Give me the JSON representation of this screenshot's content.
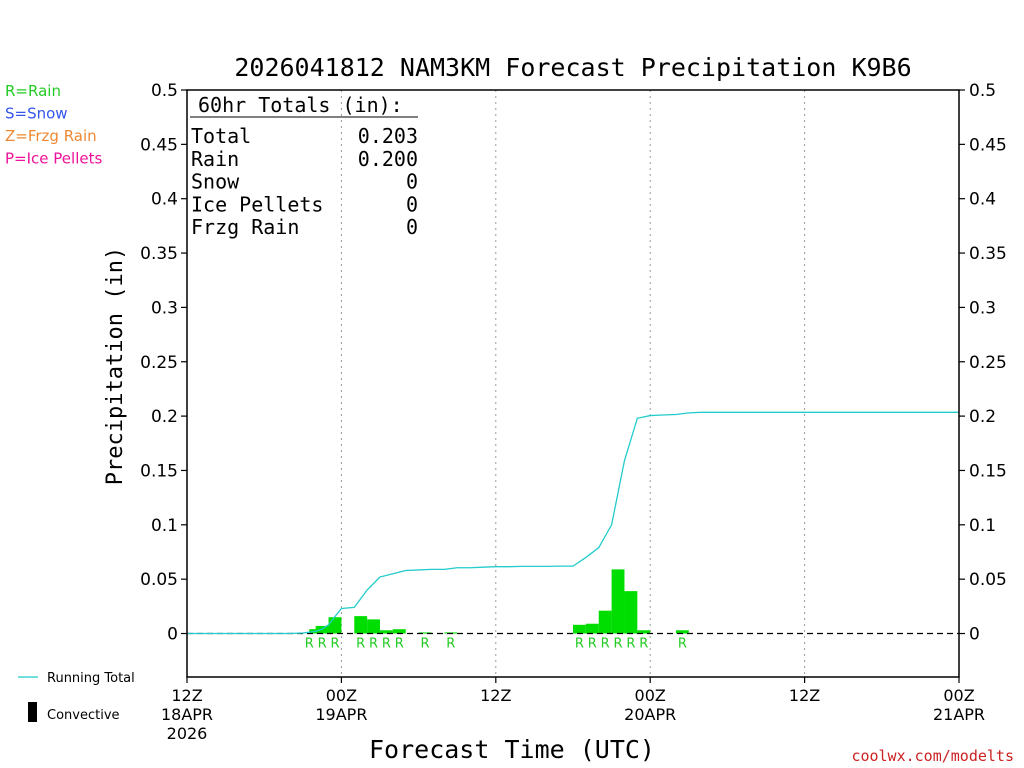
{
  "chart_data": {
    "type": "bar",
    "title": "2026041812 NAM3KM Forecast Precipitation K9B6",
    "xlabel": "Forecast Time (UTC)",
    "ylabel": "Precipitation (in)",
    "ylim": [
      -0.04,
      0.5
    ],
    "y_ticks": [
      0,
      0.05,
      0.1,
      0.15,
      0.2,
      0.25,
      0.3,
      0.35,
      0.4,
      0.45,
      0.5
    ],
    "y_tick_labels": [
      "0",
      "0.05",
      "0.1",
      "0.15",
      "0.2",
      "0.25",
      "0.3",
      "0.35",
      "0.4",
      "0.45",
      "0.5"
    ],
    "xlim_hours": [
      0,
      60
    ],
    "x_ticks": [
      {
        "hour": 0,
        "time": "12Z",
        "date": "18APR",
        "year": "2026"
      },
      {
        "hour": 12,
        "time": "00Z",
        "date": "19APR",
        "year": ""
      },
      {
        "hour": 24,
        "time": "12Z",
        "date": "",
        "year": ""
      },
      {
        "hour": 36,
        "time": "00Z",
        "date": "20APR",
        "year": ""
      },
      {
        "hour": 48,
        "time": "12Z",
        "date": "",
        "year": ""
      },
      {
        "hour": 60,
        "time": "00Z",
        "date": "21APR",
        "year": ""
      }
    ],
    "grid_hours": [
      12,
      24,
      36,
      48
    ],
    "legend_left": [
      {
        "text": "R=Rain",
        "color": "#22cc22"
      },
      {
        "text": "S=Snow",
        "color": "#3355ee"
      },
      {
        "text": "Z=Frzg Rain",
        "color": "#ee8833"
      },
      {
        "text": "P=Ice Pellets",
        "color": "#ee1199"
      }
    ],
    "legend_bottom": {
      "running_total": "Running Total",
      "convective": "Convective",
      "running_total_color": "#22cccc",
      "convective_color": "#000000"
    },
    "totals_box": {
      "header": "60hr Totals (in):",
      "rows": [
        {
          "label": "Total",
          "value": "0.203"
        },
        {
          "label": "Rain",
          "value": "0.200"
        },
        {
          "label": "Snow",
          "value": "0"
        },
        {
          "label": "Ice Pellets",
          "value": "0"
        },
        {
          "label": "Frzg Rain",
          "value": "0"
        }
      ]
    },
    "series": [
      {
        "name": "Precipitation (hourly)",
        "color": "#00dd00",
        "bars": [
          {
            "hour": 10.5,
            "value": 0.004
          },
          {
            "hour": 11,
            "value": 0.007
          },
          {
            "hour": 12,
            "value": 0.015
          },
          {
            "hour": 14,
            "value": 0.016
          },
          {
            "hour": 15,
            "value": 0.013
          },
          {
            "hour": 16,
            "value": 0.003
          },
          {
            "hour": 17,
            "value": 0.004
          },
          {
            "hour": 19,
            "value": 0.001
          },
          {
            "hour": 21,
            "value": 0.001
          },
          {
            "hour": 31,
            "value": 0.008
          },
          {
            "hour": 32,
            "value": 0.009
          },
          {
            "hour": 33,
            "value": 0.021
          },
          {
            "hour": 34,
            "value": 0.059
          },
          {
            "hour": 35,
            "value": 0.039
          },
          {
            "hour": 36,
            "value": 0.003
          },
          {
            "hour": 39,
            "value": 0.003
          }
        ]
      },
      {
        "name": "Running Total",
        "color": "#22cccc",
        "points": [
          [
            0,
            0
          ],
          [
            8,
            0
          ],
          [
            9,
            0.0005
          ],
          [
            10,
            0.002
          ],
          [
            10.5,
            0.004
          ],
          [
            11,
            0.008
          ],
          [
            12,
            0.023
          ],
          [
            13,
            0.024
          ],
          [
            14,
            0.04
          ],
          [
            15,
            0.052
          ],
          [
            16,
            0.055
          ],
          [
            17,
            0.058
          ],
          [
            18,
            0.0585
          ],
          [
            19,
            0.059
          ],
          [
            20,
            0.059
          ],
          [
            21,
            0.0605
          ],
          [
            22,
            0.0605
          ],
          [
            23,
            0.061
          ],
          [
            24,
            0.0615
          ],
          [
            25,
            0.0615
          ],
          [
            26,
            0.0618
          ],
          [
            27,
            0.0618
          ],
          [
            28,
            0.0618
          ],
          [
            29,
            0.062
          ],
          [
            30,
            0.062
          ],
          [
            31,
            0.07
          ],
          [
            32,
            0.079
          ],
          [
            33,
            0.1
          ],
          [
            34,
            0.159
          ],
          [
            35,
            0.198
          ],
          [
            36,
            0.2005
          ],
          [
            37,
            0.201
          ],
          [
            38,
            0.2015
          ],
          [
            39,
            0.203
          ],
          [
            40,
            0.2035
          ],
          [
            45,
            0.2035
          ],
          [
            50,
            0.2035
          ],
          [
            55,
            0.2035
          ],
          [
            60,
            0.2035
          ]
        ]
      }
    ],
    "ptype_markers": [
      {
        "hour": 10,
        "label": "R"
      },
      {
        "hour": 11,
        "label": "R"
      },
      {
        "hour": 12,
        "label": "R"
      },
      {
        "hour": 14,
        "label": "R"
      },
      {
        "hour": 15,
        "label": "R"
      },
      {
        "hour": 16,
        "label": "R"
      },
      {
        "hour": 17,
        "label": "R"
      },
      {
        "hour": 19,
        "label": "R"
      },
      {
        "hour": 21,
        "label": "R"
      },
      {
        "hour": 31,
        "label": "R"
      },
      {
        "hour": 32,
        "label": "R"
      },
      {
        "hour": 33,
        "label": "R"
      },
      {
        "hour": 34,
        "label": "R"
      },
      {
        "hour": 35,
        "label": "R"
      },
      {
        "hour": 36,
        "label": "R"
      },
      {
        "hour": 39,
        "label": "R"
      }
    ],
    "credit": "coolwx.com/modelts"
  }
}
